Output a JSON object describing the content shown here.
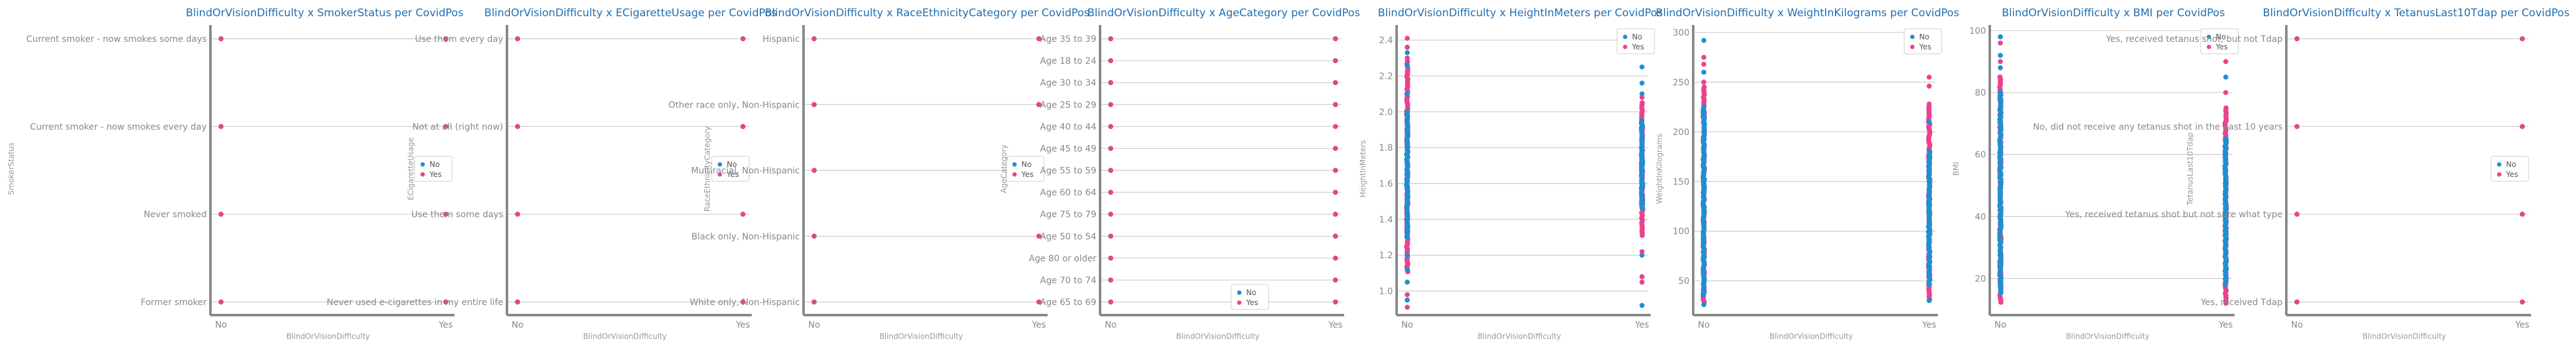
{
  "colors": {
    "No": "#1f8fd1",
    "Yes": "#e8438f",
    "title": "#1f6fb4",
    "grid": "#cccccc",
    "axis": "#888888"
  },
  "chart_data": [
    {
      "type": "scatter",
      "title": "BlindOrVisionDifficulty x SmokerStatus per CovidPos",
      "xlabel": "BlindOrVisionDifficulty",
      "ylabel": "SmokerStatus",
      "x_categories": [
        "No",
        "Yes"
      ],
      "y_categories": [
        "Current smoker - now smokes some days",
        "Current smoker - now smokes every day",
        "Never smoked",
        "Former smoker"
      ],
      "legend": "right-center",
      "grid": true,
      "series": [
        {
          "name": "No",
          "points": [
            [
              "No",
              "Current smoker - now smokes some days"
            ],
            [
              "No",
              "Current smoker - now smokes every day"
            ],
            [
              "No",
              "Never smoked"
            ],
            [
              "No",
              "Former smoker"
            ],
            [
              "Yes",
              "Current smoker - now smokes some days"
            ],
            [
              "Yes",
              "Current smoker - now smokes every day"
            ],
            [
              "Yes",
              "Never smoked"
            ],
            [
              "Yes",
              "Former smoker"
            ]
          ]
        },
        {
          "name": "Yes",
          "points": [
            [
              "No",
              "Current smoker - now smokes some days"
            ],
            [
              "No",
              "Current smoker - now smokes every day"
            ],
            [
              "No",
              "Never smoked"
            ],
            [
              "No",
              "Former smoker"
            ],
            [
              "Yes",
              "Current smoker - now smokes some days"
            ],
            [
              "Yes",
              "Current smoker - now smokes every day"
            ],
            [
              "Yes",
              "Never smoked"
            ],
            [
              "Yes",
              "Former smoker"
            ]
          ]
        }
      ]
    },
    {
      "type": "scatter",
      "title": "BlindOrVisionDifficulty x ECigaretteUsage per CovidPos",
      "xlabel": "BlindOrVisionDifficulty",
      "ylabel": "ECigaretteUsage",
      "x_categories": [
        "No",
        "Yes"
      ],
      "y_categories": [
        "Use them every day",
        "Not at all (right now)",
        "Use them some days",
        "Never used e-cigarettes in my entire life"
      ],
      "legend": "right-center",
      "grid": true,
      "series": [
        {
          "name": "No",
          "points": [
            [
              "No",
              "Use them every day"
            ],
            [
              "No",
              "Not at all (right now)"
            ],
            [
              "No",
              "Use them some days"
            ],
            [
              "No",
              "Never used e-cigarettes in my entire life"
            ],
            [
              "Yes",
              "Use them every day"
            ],
            [
              "Yes",
              "Not at all (right now)"
            ],
            [
              "Yes",
              "Use them some days"
            ],
            [
              "Yes",
              "Never used e-cigarettes in my entire life"
            ]
          ]
        },
        {
          "name": "Yes",
          "points": [
            [
              "No",
              "Use them every day"
            ],
            [
              "No",
              "Not at all (right now)"
            ],
            [
              "No",
              "Use them some days"
            ],
            [
              "No",
              "Never used e-cigarettes in my entire life"
            ],
            [
              "Yes",
              "Use them every day"
            ],
            [
              "Yes",
              "Not at all (right now)"
            ],
            [
              "Yes",
              "Use them some days"
            ],
            [
              "Yes",
              "Never used e-cigarettes in my entire life"
            ]
          ]
        }
      ]
    },
    {
      "type": "scatter",
      "title": "BlindOrVisionDifficulty x RaceEthnicityCategory per CovidPos",
      "xlabel": "BlindOrVisionDifficulty",
      "ylabel": "RaceEthnicityCategory",
      "x_categories": [
        "No",
        "Yes"
      ],
      "y_categories": [
        "Hispanic",
        "Other race only, Non-Hispanic",
        "Multiracial, Non-Hispanic",
        "Black only, Non-Hispanic",
        "White only, Non-Hispanic"
      ],
      "legend": "right-center",
      "grid": true,
      "series": [
        {
          "name": "No",
          "points": [
            [
              "No",
              "Hispanic"
            ],
            [
              "No",
              "Other race only, Non-Hispanic"
            ],
            [
              "No",
              "Multiracial, Non-Hispanic"
            ],
            [
              "No",
              "Black only, Non-Hispanic"
            ],
            [
              "No",
              "White only, Non-Hispanic"
            ],
            [
              "Yes",
              "Hispanic"
            ],
            [
              "Yes",
              "Other race only, Non-Hispanic"
            ],
            [
              "Yes",
              "Multiracial, Non-Hispanic"
            ],
            [
              "Yes",
              "Black only, Non-Hispanic"
            ],
            [
              "Yes",
              "White only, Non-Hispanic"
            ]
          ]
        },
        {
          "name": "Yes",
          "points": [
            [
              "No",
              "Hispanic"
            ],
            [
              "No",
              "Other race only, Non-Hispanic"
            ],
            [
              "No",
              "Multiracial, Non-Hispanic"
            ],
            [
              "No",
              "Black only, Non-Hispanic"
            ],
            [
              "No",
              "White only, Non-Hispanic"
            ],
            [
              "Yes",
              "Hispanic"
            ],
            [
              "Yes",
              "Other race only, Non-Hispanic"
            ],
            [
              "Yes",
              "Multiracial, Non-Hispanic"
            ],
            [
              "Yes",
              "Black only, Non-Hispanic"
            ],
            [
              "Yes",
              "White only, Non-Hispanic"
            ]
          ]
        }
      ]
    },
    {
      "type": "scatter",
      "title": "BlindOrVisionDifficulty x AgeCategory per CovidPos",
      "xlabel": "BlindOrVisionDifficulty",
      "ylabel": "AgeCategory",
      "x_categories": [
        "No",
        "Yes"
      ],
      "y_categories": [
        "Age 35 to 39",
        "Age 18 to 24",
        "Age 30 to 34",
        "Age 25 to 29",
        "Age 40 to 44",
        "Age 45 to 49",
        "Age 55 to 59",
        "Age 60 to 64",
        "Age 75 to 79",
        "Age 50 to 54",
        "Age 80 or older",
        "Age 70 to 74",
        "Age 65 to 69"
      ],
      "legend": "bottom-left",
      "grid": true,
      "series": [
        {
          "name": "No",
          "points": [
            [
              "No",
              "Age 35 to 39"
            ],
            [
              "No",
              "Age 18 to 24"
            ],
            [
              "No",
              "Age 30 to 34"
            ],
            [
              "No",
              "Age 25 to 29"
            ],
            [
              "No",
              "Age 40 to 44"
            ],
            [
              "No",
              "Age 45 to 49"
            ],
            [
              "No",
              "Age 55 to 59"
            ],
            [
              "No",
              "Age 60 to 64"
            ],
            [
              "No",
              "Age 75 to 79"
            ],
            [
              "No",
              "Age 50 to 54"
            ],
            [
              "No",
              "Age 80 or older"
            ],
            [
              "No",
              "Age 70 to 74"
            ],
            [
              "No",
              "Age 65 to 69"
            ],
            [
              "Yes",
              "Age 35 to 39"
            ],
            [
              "Yes",
              "Age 18 to 24"
            ],
            [
              "Yes",
              "Age 30 to 34"
            ],
            [
              "Yes",
              "Age 25 to 29"
            ],
            [
              "Yes",
              "Age 40 to 44"
            ],
            [
              "Yes",
              "Age 45 to 49"
            ],
            [
              "Yes",
              "Age 55 to 59"
            ],
            [
              "Yes",
              "Age 60 to 64"
            ],
            [
              "Yes",
              "Age 75 to 79"
            ],
            [
              "Yes",
              "Age 50 to 54"
            ],
            [
              "Yes",
              "Age 80 or older"
            ],
            [
              "Yes",
              "Age 70 to 74"
            ],
            [
              "Yes",
              "Age 65 to 69"
            ]
          ]
        },
        {
          "name": "Yes",
          "points": [
            [
              "No",
              "Age 35 to 39"
            ],
            [
              "No",
              "Age 18 to 24"
            ],
            [
              "No",
              "Age 30 to 34"
            ],
            [
              "No",
              "Age 25 to 29"
            ],
            [
              "No",
              "Age 40 to 44"
            ],
            [
              "No",
              "Age 45 to 49"
            ],
            [
              "No",
              "Age 55 to 59"
            ],
            [
              "No",
              "Age 60 to 64"
            ],
            [
              "No",
              "Age 75 to 79"
            ],
            [
              "No",
              "Age 50 to 54"
            ],
            [
              "No",
              "Age 80 or older"
            ],
            [
              "No",
              "Age 70 to 74"
            ],
            [
              "No",
              "Age 65 to 69"
            ],
            [
              "Yes",
              "Age 35 to 39"
            ],
            [
              "Yes",
              "Age 18 to 24"
            ],
            [
              "Yes",
              "Age 30 to 34"
            ],
            [
              "Yes",
              "Age 25 to 29"
            ],
            [
              "Yes",
              "Age 40 to 44"
            ],
            [
              "Yes",
              "Age 45 to 49"
            ],
            [
              "Yes",
              "Age 55 to 59"
            ],
            [
              "Yes",
              "Age 60 to 64"
            ],
            [
              "Yes",
              "Age 75 to 79"
            ],
            [
              "Yes",
              "Age 50 to 54"
            ],
            [
              "Yes",
              "Age 80 or older"
            ],
            [
              "Yes",
              "Age 70 to 74"
            ],
            [
              "Yes",
              "Age 65 to 69"
            ]
          ]
        }
      ]
    },
    {
      "type": "scatter",
      "title": "BlindOrVisionDifficulty x HeightInMeters per CovidPos",
      "xlabel": "BlindOrVisionDifficulty",
      "ylabel": "HeightInMeters",
      "x_categories": [
        "No",
        "Yes"
      ],
      "y_ticks": [
        1.0,
        1.2,
        1.4,
        1.6,
        1.8,
        2.0,
        2.2,
        2.4
      ],
      "ylim": [
        0.88,
        2.47
      ],
      "legend": "top-right",
      "grid": true,
      "series": [
        {
          "name": "No",
          "x": [
            "No",
            "No",
            "No",
            "No",
            "No",
            "No",
            "No",
            "No",
            "Yes",
            "Yes",
            "Yes",
            "Yes",
            "Yes",
            "Yes"
          ],
          "y": [
            0.95,
            1.05,
            1.12,
            1.2,
            2.1,
            2.26,
            2.33,
            2.36,
            0.92,
            1.08,
            1.2,
            2.1,
            2.16,
            2.25
          ]
        },
        {
          "name": "Yes",
          "x": [
            "No",
            "No",
            "No",
            "No",
            "No",
            "Yes",
            "Yes",
            "Yes",
            "Yes"
          ],
          "y": [
            0.91,
            0.98,
            2.3,
            2.36,
            2.41,
            1.05,
            1.08,
            1.22,
            2.08
          ]
        }
      ],
      "dense_ranges": [
        {
          "series": "Yes",
          "x": "No",
          "y_range": [
            1.1,
            2.28
          ]
        },
        {
          "series": "No",
          "x": "No",
          "y_range": [
            1.3,
            2.0
          ]
        },
        {
          "series": "Yes",
          "x": "Yes",
          "y_range": [
            1.3,
            2.05
          ]
        },
        {
          "series": "No",
          "x": "Yes",
          "y_range": [
            1.45,
            1.95
          ]
        }
      ]
    },
    {
      "type": "scatter",
      "title": "BlindOrVisionDifficulty x WeightInKilograms per CovidPos",
      "xlabel": "BlindOrVisionDifficulty",
      "ylabel": "WeightInKilograms",
      "x_categories": [
        "No",
        "Yes"
      ],
      "y_ticks": [
        50,
        100,
        150,
        200,
        250,
        300
      ],
      "ylim": [
        18,
        305
      ],
      "legend": "top-right",
      "grid": true,
      "series": [
        {
          "name": "No",
          "x": [
            "No",
            "No",
            "No",
            "Yes",
            "Yes"
          ],
          "y": [
            292,
            260,
            26,
            210,
            30
          ]
        },
        {
          "name": "Yes",
          "x": [
            "No",
            "No",
            "No",
            "Yes",
            "Yes",
            "Yes"
          ],
          "y": [
            275,
            268,
            250,
            255,
            246,
            228
          ]
        }
      ],
      "dense_ranges": [
        {
          "series": "Yes",
          "x": "No",
          "y_range": [
            28,
            245
          ]
        },
        {
          "series": "No",
          "x": "No",
          "y_range": [
            35,
            225
          ]
        },
        {
          "series": "Yes",
          "x": "Yes",
          "y_range": [
            30,
            225
          ]
        },
        {
          "series": "No",
          "x": "Yes",
          "y_range": [
            45,
            180
          ]
        }
      ]
    },
    {
      "type": "scatter",
      "title": "BlindOrVisionDifficulty x BMI per CovidPos",
      "xlabel": "BlindOrVisionDifficulty",
      "ylabel": "BMI",
      "x_categories": [
        "No",
        "Yes"
      ],
      "y_ticks": [
        20,
        40,
        60,
        80,
        100
      ],
      "ylim": [
        9,
        101
      ],
      "legend": "top-right",
      "grid": true,
      "series": [
        {
          "name": "No",
          "x": [
            "No",
            "No",
            "No",
            "Yes",
            "Yes"
          ],
          "y": [
            98,
            92,
            88,
            94,
            85
          ]
        },
        {
          "name": "Yes",
          "x": [
            "No",
            "No",
            "Yes",
            "Yes"
          ],
          "y": [
            96,
            90,
            90,
            80
          ]
        }
      ],
      "dense_ranges": [
        {
          "series": "Yes",
          "x": "No",
          "y_range": [
            12,
            85
          ]
        },
        {
          "series": "No",
          "x": "No",
          "y_range": [
            15,
            80
          ]
        },
        {
          "series": "Yes",
          "x": "Yes",
          "y_range": [
            12,
            75
          ]
        },
        {
          "series": "No",
          "x": "Yes",
          "y_range": [
            18,
            65
          ]
        }
      ]
    },
    {
      "type": "scatter",
      "title": "BlindOrVisionDifficulty x TetanusLast10Tdap per CovidPos",
      "xlabel": "BlindOrVisionDifficulty",
      "ylabel": "TetanusLast10Tdap",
      "x_categories": [
        "No",
        "Yes"
      ],
      "y_categories": [
        "Yes, received tetanus shot, but not Tdap",
        "No, did not receive any tetanus shot in the past 10 years",
        "Yes, received tetanus shot but not sure what type",
        "Yes, received Tdap"
      ],
      "legend": "right-center",
      "grid": true,
      "series": [
        {
          "name": "No",
          "points": [
            [
              "No",
              "Yes, received tetanus shot, but not Tdap"
            ],
            [
              "No",
              "No, did not receive any tetanus shot in the past 10 years"
            ],
            [
              "No",
              "Yes, received tetanus shot but not sure what type"
            ],
            [
              "No",
              "Yes, received Tdap"
            ],
            [
              "Yes",
              "Yes, received tetanus shot, but not Tdap"
            ],
            [
              "Yes",
              "No, did not receive any tetanus shot in the past 10 years"
            ],
            [
              "Yes",
              "Yes, received tetanus shot but not sure what type"
            ],
            [
              "Yes",
              "Yes, received Tdap"
            ]
          ]
        },
        {
          "name": "Yes",
          "points": [
            [
              "No",
              "Yes, received tetanus shot, but not Tdap"
            ],
            [
              "No",
              "No, did not receive any tetanus shot in the past 10 years"
            ],
            [
              "No",
              "Yes, received tetanus shot but not sure what type"
            ],
            [
              "No",
              "Yes, received Tdap"
            ],
            [
              "Yes",
              "Yes, received tetanus shot, but not Tdap"
            ],
            [
              "Yes",
              "No, did not receive any tetanus shot in the past 10 years"
            ],
            [
              "Yes",
              "Yes, received tetanus shot but not sure what type"
            ],
            [
              "Yes",
              "Yes, received Tdap"
            ]
          ]
        }
      ]
    }
  ]
}
